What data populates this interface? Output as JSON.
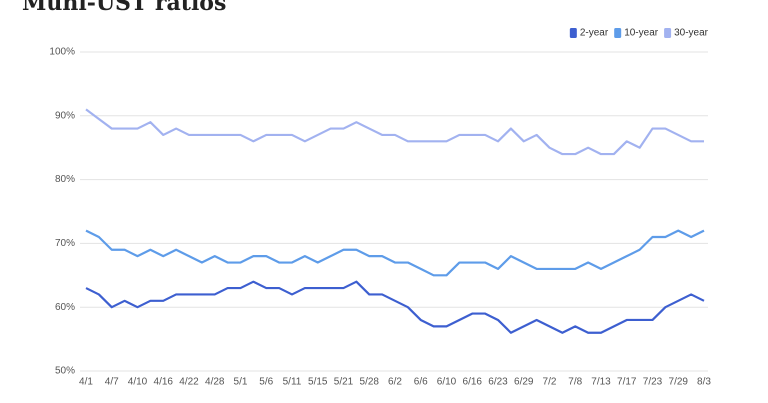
{
  "chart_data": {
    "type": "line",
    "title": "Muni-UST ratios",
    "categories": [
      "4/1",
      null,
      "4/7",
      null,
      "4/10",
      null,
      "4/16",
      null,
      "4/22",
      null,
      "4/28",
      null,
      "5/1",
      null,
      "5/6",
      null,
      "5/11",
      null,
      "5/15",
      null,
      "5/21",
      null,
      "5/28",
      null,
      "6/2",
      null,
      "6/6",
      null,
      "6/10",
      null,
      "6/16",
      null,
      "6/23",
      null,
      "6/29",
      null,
      "7/2",
      null,
      "7/8",
      null,
      "7/13",
      null,
      "7/17",
      null,
      "7/23",
      null,
      "7/29",
      null,
      "8/3"
    ],
    "series": [
      {
        "name": "2-year",
        "color": "#3d5fd0",
        "values": [
          63,
          62,
          60,
          61,
          60,
          61,
          61,
          62,
          62,
          62,
          62,
          63,
          63,
          64,
          63,
          63,
          62,
          63,
          63,
          63,
          63,
          64,
          62,
          62,
          61,
          60,
          58,
          57,
          57,
          58,
          59,
          59,
          58,
          56,
          57,
          58,
          57,
          56,
          57,
          56,
          56,
          57,
          58,
          58,
          58,
          60,
          61,
          62,
          61
        ]
      },
      {
        "name": "10-year",
        "color": "#5e9ce9",
        "values": [
          72,
          71,
          69,
          69,
          68,
          69,
          68,
          69,
          68,
          67,
          68,
          67,
          67,
          68,
          68,
          67,
          67,
          68,
          67,
          68,
          69,
          69,
          68,
          68,
          67,
          67,
          66,
          65,
          65,
          67,
          67,
          67,
          66,
          68,
          67,
          66,
          66,
          66,
          66,
          67,
          66,
          67,
          68,
          69,
          71,
          71,
          72,
          71,
          72
        ]
      },
      {
        "name": "30-year",
        "color": "#a2b2f0",
        "values": [
          91,
          89.5,
          88,
          88,
          88,
          89,
          87,
          88,
          87,
          87,
          87,
          87,
          87,
          86,
          87,
          87,
          87,
          86,
          87,
          88,
          88,
          89,
          88,
          87,
          87,
          86,
          86,
          86,
          86,
          87,
          87,
          87,
          86,
          88,
          86,
          87,
          85,
          84,
          84,
          85,
          84,
          84,
          86,
          85,
          88,
          88,
          87,
          86,
          86
        ]
      }
    ],
    "ylim": [
      50,
      100
    ],
    "yticks": [
      {
        "value": 50,
        "label": "50%"
      },
      {
        "value": 60,
        "label": "60%"
      },
      {
        "value": 70,
        "label": "70%"
      },
      {
        "value": 80,
        "label": "80%"
      },
      {
        "value": 90,
        "label": "90%"
      },
      {
        "value": 100,
        "label": "100%"
      }
    ],
    "grid": true,
    "legend": "top-right"
  }
}
